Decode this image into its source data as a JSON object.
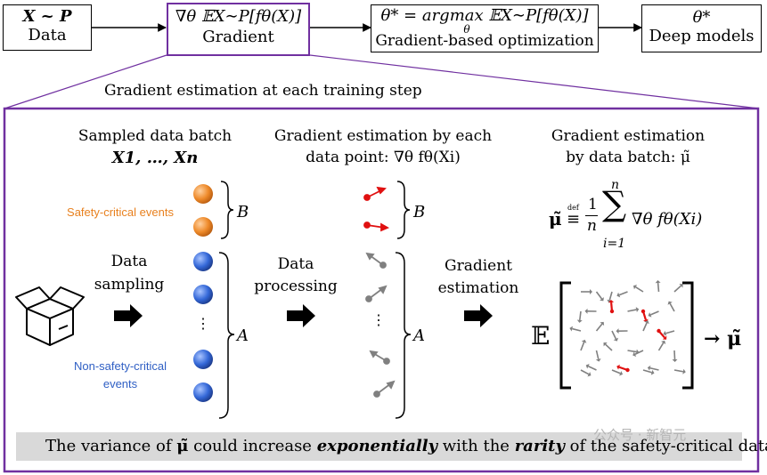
{
  "top_row": {
    "data_box": {
      "line1": "X ~ P",
      "line2": "Data"
    },
    "gradient_box": {
      "line1": "∇θ 𝔼X∼P[fθ(X)]",
      "line2": "Gradient"
    },
    "optimization_box": {
      "line1": "θ* = argmax 𝔼X∼P[fθ(X)]",
      "line1_sub": "θ",
      "line2": "Gradient-based optimization"
    },
    "deep_models_box": {
      "line1": "θ*",
      "line2": "Deep models"
    }
  },
  "section_title": "Gradient estimation at each training step",
  "columns": {
    "batch": {
      "heading": "Sampled data batch",
      "subheading": "X1, …, Xn"
    },
    "per_point": {
      "heading": "Gradient estimation by each",
      "subheading": "data point: ∇θ fθ(Xi)"
    },
    "batch_est": {
      "heading": "Gradient estimation",
      "subheading": "by data batch: μ̃"
    }
  },
  "formula": "μ̃ ≝ (1/n) Σ_{i=1}^{n} ∇θ fθ(Xi)",
  "formula_parts": {
    "lhs": "μ̃",
    "def": "def",
    "frac_num": "1",
    "frac_den": "n",
    "sum_top": "n",
    "sum_bottom": "i=1",
    "term": "∇θ fθ(Xi)"
  },
  "labels": {
    "safety_critical": "Safety-critical events",
    "non_safety_critical_1": "Non-safety-critical",
    "non_safety_critical_2": "events",
    "brace_B": "B",
    "brace_A": "A",
    "brace_B2": "B",
    "brace_A2": "A",
    "vertical_dots": "⋮",
    "data_sampling_1": "Data",
    "data_sampling_2": "sampling",
    "data_processing_1": "Data",
    "data_processing_2": "processing",
    "gradient_estimation_1": "Gradient",
    "gradient_estimation_2": "estimation",
    "expectation": "𝔼",
    "arrow_result": "→ μ̃"
  },
  "footer": {
    "pre": "The variance of ",
    "mu": "μ̃",
    "mid1": " could increase ",
    "exp": "exponentially",
    "mid2": " with the ",
    "rarity": "rarity",
    "post": " of the safety-critical data."
  },
  "watermark": "公众号 · 新智元",
  "colors": {
    "purple": "#7030a0",
    "orange": "#e8801e",
    "blue": "#2f5fc4",
    "red": "#e01010",
    "gray_arrow": "#808080",
    "footer_bg": "#d9d9d9"
  }
}
